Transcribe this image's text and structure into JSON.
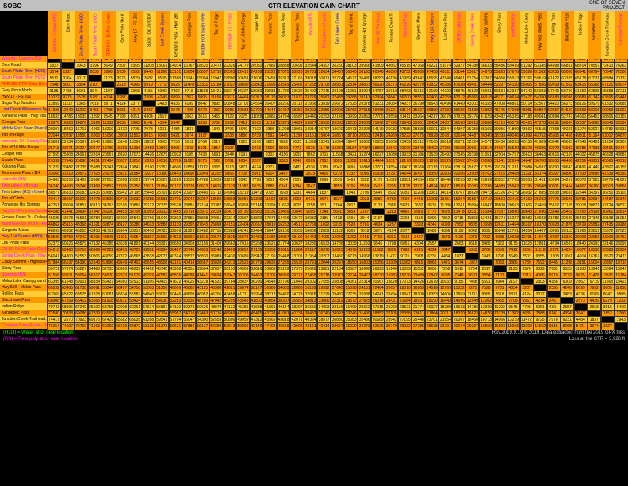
{
  "header": {
    "left": "SOBO",
    "center": "CTR ELEVATION GAIN CHART",
    "right_line1": "ONE OF SEVEN",
    "right_line2": "PROJECT"
  },
  "row_labels": [
    {
      "text": "Waterton Canyon (BS)",
      "color": "#f0f"
    },
    {
      "text": "Dam Road",
      "color": "#000"
    },
    {
      "text": "South Platte River (H2O)",
      "color": "#00f"
    },
    {
      "text": "South Platte River (H2O)",
      "color": "#f0f"
    },
    {
      "text": "FDR 560-CTR Oster Rte (H2O) - Buffalo Creek All",
      "color": "#f00"
    },
    {
      "text": "Gary Picks North",
      "color": "#000"
    },
    {
      "text": "Hwy 17 - FS 201",
      "color": "#000"
    },
    {
      "text": "Sugar Top Junction",
      "color": "#000"
    },
    {
      "text": "Lost Creek Wilderness Bypass (H2O) - Rock Creek",
      "color": "#00f"
    },
    {
      "text": "Kenosha Pass - Hwy 285 / Jefferson Lake",
      "color": "#000"
    },
    {
      "text": "Georgia Pass",
      "color": "#000"
    },
    {
      "text": "Middle Fork Swan River (H2O)",
      "color": "#00f"
    },
    {
      "text": "Top of Ridge",
      "color": "#000"
    },
    {
      "text": "Interstate 70 / County Road Durango (RS) - Frisco",
      "color": "#f0f"
    },
    {
      "text": "Top of 10 Mile Range",
      "color": "#000"
    },
    {
      "text": "Cooper Mtn",
      "color": "#000"
    },
    {
      "text": "Searle Pass",
      "color": "#000"
    },
    {
      "text": "Kokomo Pass",
      "color": "#000"
    },
    {
      "text": "Tennessee Pass / 114",
      "color": "#000"
    },
    {
      "text": "Leadville (RS)",
      "color": "#f0f"
    },
    {
      "text": "Twin Lakes, off route",
      "color": "#f0f"
    },
    {
      "text": "Twin Lakes (RS) / Creek (H2O)",
      "color": "#00f"
    },
    {
      "text": "Top of Climb",
      "color": "#000"
    },
    {
      "text": "Princeton Hot Springs",
      "color": "#000"
    },
    {
      "text": "Hwy 50 / Perfectos Bunnies (RS) Fixed Camp",
      "color": "#f0f"
    },
    {
      "text": "Fooses Creek Tr - Collegiate Peaks Wilderness Bypass",
      "color": "#000"
    },
    {
      "text": "Marshall Pass (H2O) / Poncha (RS) - 6 Miles (RS)",
      "color": "#f0f"
    },
    {
      "text": "Sargents Mesa",
      "color": "#000"
    },
    {
      "text": "Hwy 114 Stream (H2O) / Cochetopa Creek Cabins, off",
      "color": "#00f"
    },
    {
      "text": "Los Pinos Pass",
      "color": "#000"
    },
    {
      "text": "CR BD Eft Off Lake City (RS)",
      "color": "#f0f"
    },
    {
      "text": "Spring Creek Pass - Hwy 149 / Lake City (RS) - 17 Miles",
      "color": "#f0f"
    },
    {
      "text": "Crazy Summit - Highest Point",
      "color": "#000"
    },
    {
      "text": "Stony Pass",
      "color": "#000"
    },
    {
      "text": "Silverton (RS)",
      "color": "#f0f"
    },
    {
      "text": "Molas Lake Campground",
      "color": "#000"
    },
    {
      "text": "Hwy 550 - Molas Pass",
      "color": "#000"
    },
    {
      "text": "Rolling Pass",
      "color": "#000"
    },
    {
      "text": "Blackhawk Pass",
      "color": "#000"
    },
    {
      "text": "Indian Ridge",
      "color": "#000"
    },
    {
      "text": "Kennebec Pass",
      "color": "#000"
    },
    {
      "text": "Junction Creek Trailhead, Velorim Bicycle",
      "color": "#000"
    },
    {
      "text": "Carnegie Cone Route - Durango (RS)",
      "color": "#f0f"
    }
  ],
  "col_headers": [
    {
      "text": "Waterton Canyon (BS)",
      "color": "#f0f"
    },
    {
      "text": "Dam Road",
      "color": "#000"
    },
    {
      "text": "South Platte River (H2O)",
      "color": "#00f"
    },
    {
      "text": "South Platte River (H2O)",
      "color": "#f0f"
    },
    {
      "text": "FDR 560 - Buffalo Creek",
      "color": "#f00"
    },
    {
      "text": "Gary Picks North",
      "color": "#000"
    },
    {
      "text": "Hwy 17 - FS 201",
      "color": "#000"
    },
    {
      "text": "Sugar Top Junction",
      "color": "#000"
    },
    {
      "text": "Lost Creek Bypass",
      "color": "#00f"
    },
    {
      "text": "Kenosha Pass - Hwy 285",
      "color": "#000"
    },
    {
      "text": "Georgia Pass",
      "color": "#000"
    },
    {
      "text": "Middle Fork Swan River",
      "color": "#00f"
    },
    {
      "text": "Top of Ridge",
      "color": "#000"
    },
    {
      "text": "Interstate 70 - Frisco",
      "color": "#f0f"
    },
    {
      "text": "Top of 10 Mile Range",
      "color": "#000"
    },
    {
      "text": "Cooper Mtn",
      "color": "#000"
    },
    {
      "text": "Searle Pass",
      "color": "#000"
    },
    {
      "text": "Kokomo Pass",
      "color": "#000"
    },
    {
      "text": "Tennessee Pass",
      "color": "#000"
    },
    {
      "text": "Leadville (RS)",
      "color": "#f0f"
    },
    {
      "text": "Twin Lakes off route",
      "color": "#f0f"
    },
    {
      "text": "Twin Lakes Creek",
      "color": "#00f"
    },
    {
      "text": "Top of Climb",
      "color": "#000"
    },
    {
      "text": "Princeton Hot Springs",
      "color": "#000"
    },
    {
      "text": "Hwy 50 Perfectos",
      "color": "#f0f"
    },
    {
      "text": "Fooses Creek Tr",
      "color": "#000"
    },
    {
      "text": "Marshall Pass",
      "color": "#f0f"
    },
    {
      "text": "Sargents Mesa",
      "color": "#000"
    },
    {
      "text": "Hwy 114 Stream",
      "color": "#00f"
    },
    {
      "text": "Los Pinos Pass",
      "color": "#000"
    },
    {
      "text": "CR BD Lake City",
      "color": "#f0f"
    },
    {
      "text": "Spring Creek Pass",
      "color": "#f0f"
    },
    {
      "text": "Crazy Summit",
      "color": "#000"
    },
    {
      "text": "Stony Pass",
      "color": "#000"
    },
    {
      "text": "Silverton (RS)",
      "color": "#f0f"
    },
    {
      "text": "Molas Lake Camp",
      "color": "#000"
    },
    {
      "text": "Hwy 550 Molas Pass",
      "color": "#000"
    },
    {
      "text": "Rolling Pass",
      "color": "#000"
    },
    {
      "text": "Blackhawk Pass",
      "color": "#000"
    },
    {
      "text": "Indian Ridge",
      "color": "#000"
    },
    {
      "text": "Kennebec Pass",
      "color": "#000"
    },
    {
      "text": "Junction Creek Trailhead",
      "color": "#000"
    },
    {
      "text": "Carnegie Durango",
      "color": "#f0f"
    }
  ],
  "colors": {
    "row_bg_alt": [
      "#f90",
      "#fc3"
    ],
    "label_bg": [
      "#f90",
      "#fc3"
    ],
    "diagonal": "#000",
    "grid_line": "#666"
  },
  "footer": {
    "line1": "(H2O) = Water at or near location",
    "line2": "(RS) = Resupply at or near location",
    "right1": "Rev.2019.9.19 © 2019. Data extracted from the 2019 GPX files",
    "right2": "Loss at the CTR = 3,926 ft"
  },
  "sample_data_note": "Matrix contains elevation gain values between waypoints. Diagonal cells are black (self-to-self = 0). Values range roughly 100-80000 ft. Cell backgrounds alternate orange #f90 and yellow-orange #fc3 by row."
}
